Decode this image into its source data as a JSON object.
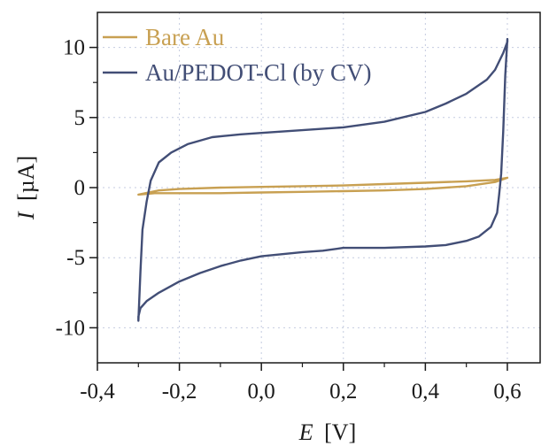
{
  "chart_data": {
    "type": "line",
    "xlabel_symbol": "E",
    "xlabel_unit": "[V]",
    "ylabel_symbol": "I",
    "ylabel_unit": "[µA]",
    "xlim": [
      -0.4,
      0.68
    ],
    "ylim": [
      -12.5,
      12.5
    ],
    "xticks": [
      -0.4,
      -0.2,
      0.0,
      0.2,
      0.4,
      0.6
    ],
    "xtick_labels": [
      "-0,4",
      "-0,2",
      "0,0",
      "0,2",
      "0,4",
      "0,6"
    ],
    "yticks": [
      -10,
      -5,
      0,
      5,
      10
    ],
    "ytick_labels": [
      "-10",
      "-5",
      "0",
      "5",
      "10"
    ],
    "grid": "dotted",
    "legend_position": "top-left",
    "series": [
      {
        "name": "Bare Au",
        "color": "#c8a052",
        "x": [
          -0.3,
          -0.25,
          -0.2,
          -0.1,
          0.0,
          0.1,
          0.2,
          0.3,
          0.4,
          0.5,
          0.57,
          0.6,
          0.57,
          0.5,
          0.4,
          0.3,
          0.2,
          0.1,
          0.0,
          -0.1,
          -0.2,
          -0.26,
          -0.3
        ],
        "y": [
          -0.5,
          -0.2,
          -0.1,
          0.0,
          0.05,
          0.1,
          0.15,
          0.25,
          0.35,
          0.45,
          0.55,
          0.7,
          0.4,
          0.1,
          -0.1,
          -0.2,
          -0.25,
          -0.3,
          -0.35,
          -0.4,
          -0.4,
          -0.4,
          -0.5
        ]
      },
      {
        "name": "Au/PEDOT-Cl (by CV)",
        "color": "#424e76",
        "x": [
          -0.3,
          -0.295,
          -0.29,
          -0.28,
          -0.27,
          -0.25,
          -0.22,
          -0.18,
          -0.12,
          -0.05,
          0.0,
          0.1,
          0.2,
          0.3,
          0.4,
          0.45,
          0.5,
          0.55,
          0.57,
          0.58,
          0.59,
          0.6,
          0.6,
          0.595,
          0.59,
          0.585,
          0.58,
          0.575,
          0.56,
          0.53,
          0.5,
          0.45,
          0.4,
          0.3,
          0.2,
          0.15,
          0.1,
          0.0,
          -0.05,
          -0.1,
          -0.15,
          -0.2,
          -0.25,
          -0.28,
          -0.295,
          -0.3
        ],
        "y": [
          -9.5,
          -6.0,
          -3.0,
          -1.0,
          0.5,
          1.8,
          2.5,
          3.1,
          3.6,
          3.8,
          3.9,
          4.1,
          4.3,
          4.7,
          5.4,
          6.0,
          6.7,
          7.7,
          8.4,
          9.0,
          9.6,
          10.4,
          10.6,
          8.0,
          4.0,
          1.0,
          -0.5,
          -1.8,
          -2.8,
          -3.5,
          -3.8,
          -4.1,
          -4.2,
          -4.3,
          -4.3,
          -4.5,
          -4.6,
          -4.9,
          -5.2,
          -5.6,
          -6.1,
          -6.7,
          -7.5,
          -8.1,
          -8.6,
          -9.2
        ]
      }
    ]
  }
}
